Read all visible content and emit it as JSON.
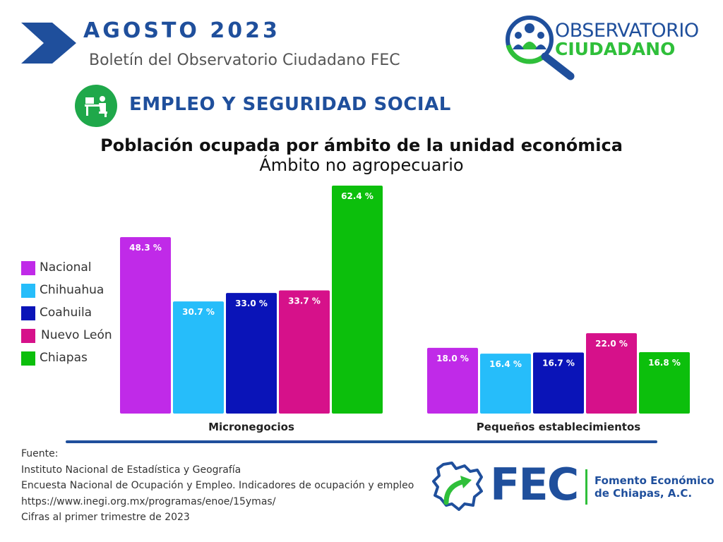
{
  "header": {
    "month": "AGOSTO  2023",
    "subtitle": "Boletín del Observatorio Ciudadano FEC"
  },
  "observatorio_logo": {
    "line1": "OBSERVATORIO",
    "line2": "CIUDADANO"
  },
  "section": {
    "title": "EMPLEO Y SEGURIDAD SOCIAL",
    "icon": "office-worker-icon"
  },
  "chart_data": {
    "type": "bar",
    "title": "Población ocupada por ámbito de la unidad económica",
    "subtitle": "Ámbito no agropecuario",
    "categories": [
      "Micronegocios",
      "Pequeños establecimientos"
    ],
    "series": [
      {
        "name": "Nacional",
        "color": "#c02ae8",
        "values": [
          48.3,
          18.0
        ],
        "labels": [
          "48.3 %",
          "18.0 %"
        ]
      },
      {
        "name": "Chihuahua",
        "color": "#26bdfa",
        "values": [
          30.7,
          16.4
        ],
        "labels": [
          "30.7 %",
          "16.4 %"
        ]
      },
      {
        "name": "Coahuila",
        "color": "#0a14b8",
        "values": [
          33.0,
          16.7
        ],
        "labels": [
          "33.0 %",
          "16.7 %"
        ]
      },
      {
        "name": "Nuevo León",
        "color": "#d6118a",
        "values": [
          33.7,
          22.0
        ],
        "labels": [
          "33.7 %",
          "22.0 %"
        ]
      },
      {
        "name": "Chiapas",
        "color": "#0cbf0c",
        "values": [
          62.4,
          16.8
        ],
        "labels": [
          "62.4 %",
          "16.8 %"
        ]
      }
    ],
    "ylim": [
      0,
      62.4
    ],
    "legend_position": "left",
    "grid": false
  },
  "source": {
    "lines": [
      "Fuente:",
      "Instituto Nacional de Estadística y Geografía",
      "Encuesta Nacional de Ocupación y Empleo. Indicadores de ocupación y empleo",
      "https://www.inegi.org.mx/programas/enoe/15ymas/",
      "Cifras al primer trimestre de 2023"
    ]
  },
  "fec_logo": {
    "acronym": "FEC",
    "name_line1": "Fomento Económico",
    "name_line2": "de Chiapas, A.C."
  },
  "colors": {
    "brand_blue": "#1f4f9c",
    "brand_green": "#2fbf3a"
  }
}
